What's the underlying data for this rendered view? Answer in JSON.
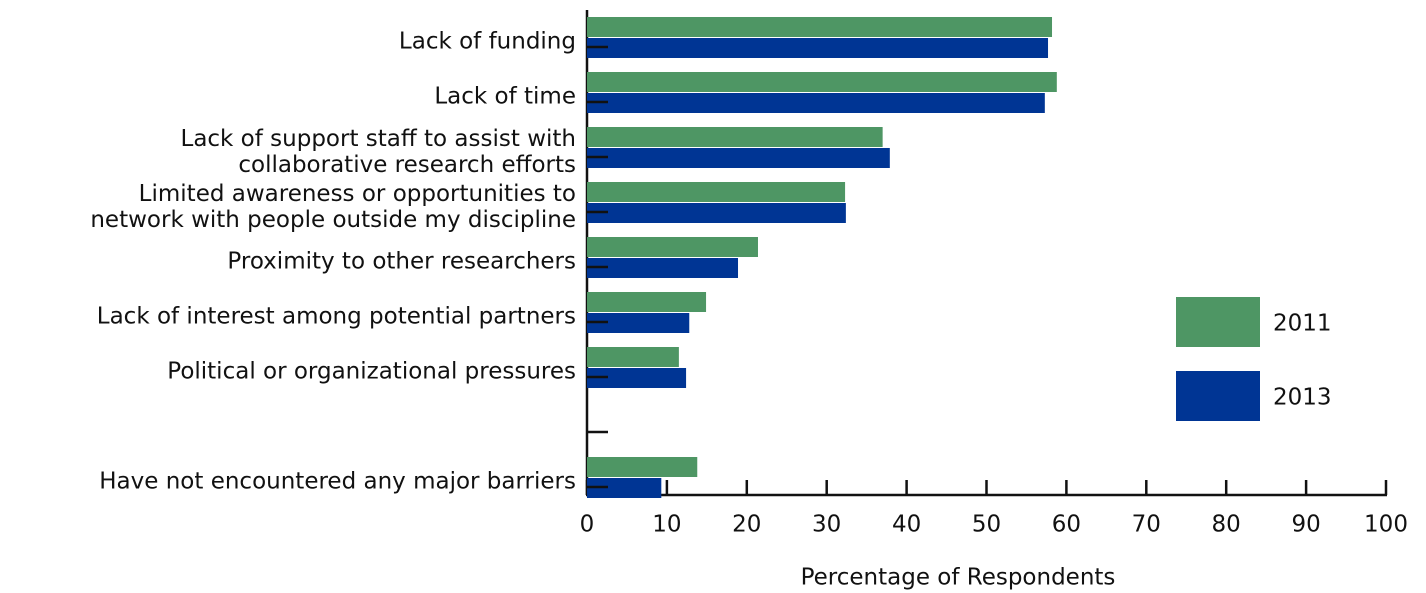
{
  "chart_data": {
    "type": "bar",
    "orientation": "horizontal",
    "x_label": "Percentage of Respondents",
    "categories": [
      "Lack of funding",
      "Lack of time",
      "Lack of support staff to assist with\ncollaborative research efforts",
      "Limited awareness or opportunities to\nnetwork with people outside my discipline",
      "Proximity to other researchers",
      "Lack of interest among potential partners",
      "Political or organizational pressures",
      null,
      "Have not encountered any major barriers"
    ],
    "series": [
      {
        "name": "2011",
        "color": "#4e9664",
        "values": [
          58.2,
          58.8,
          37.0,
          32.3,
          21.4,
          14.9,
          11.5,
          null,
          13.8
        ]
      },
      {
        "name": "2013",
        "color": "#003594",
        "values": [
          57.7,
          57.3,
          37.9,
          32.4,
          18.9,
          12.8,
          12.4,
          null,
          9.3
        ]
      }
    ],
    "xlim": [
      0,
      100
    ],
    "xticks": [
      0,
      10,
      20,
      30,
      40,
      50,
      60,
      70,
      80,
      90,
      100
    ],
    "legend": "right"
  }
}
